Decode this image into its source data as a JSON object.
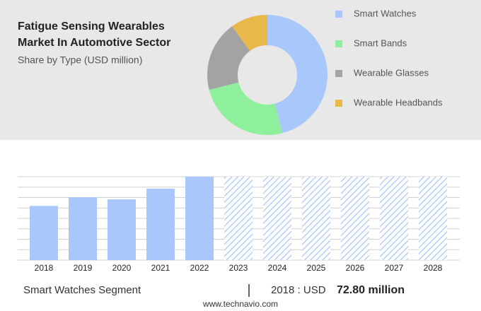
{
  "chart_data": [
    {
      "type": "pie",
      "title": [
        "Fatigue Sensing Wearables",
        "Market In Automotive Sector"
      ],
      "subtitle": "Share by Type (USD million)",
      "categories": [
        "Smart Watches",
        "Smart Bands",
        "Wearable Glasses",
        "Wearable Headbands"
      ],
      "values": [
        46,
        25,
        19,
        10
      ],
      "colors": [
        "#a8c7fa",
        "#8eef9c",
        "#a3a3a3",
        "#e8b84a"
      ],
      "donut": true
    },
    {
      "type": "bar",
      "categories": [
        "2018",
        "2019",
        "2020",
        "2021",
        "2022",
        "2023",
        "2024",
        "2025",
        "2026",
        "2027",
        "2028"
      ],
      "values": [
        72.8,
        84.5,
        81.6,
        95.9,
        112,
        null,
        null,
        null,
        null,
        null,
        null
      ],
      "color": "#a9c7fb",
      "ylim": [
        0,
        112
      ],
      "yticks": [
        0,
        14,
        28,
        42,
        56,
        70,
        84,
        98,
        112
      ],
      "grid": true
    }
  ],
  "footer": {
    "segment": "Smart Watches Segment",
    "year_label": "2018 : USD",
    "value_label": "72.80 million"
  },
  "source": "www.technavio.com"
}
